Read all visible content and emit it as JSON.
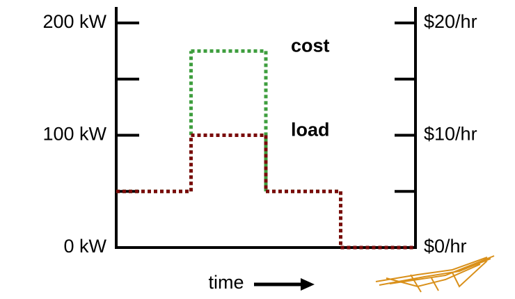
{
  "chart_data": {
    "type": "step",
    "xlabel": "time",
    "categories": [
      null,
      null,
      null,
      null
    ],
    "ylim": [
      0,
      200
    ],
    "yticks": [
      {
        "value": 0,
        "label": "0 kW"
      },
      {
        "value": 100,
        "label": "100 kW"
      },
      {
        "value": 200,
        "label": "200 kW"
      }
    ],
    "minor_yticks": [
      50,
      150
    ],
    "y2lim": [
      0,
      20
    ],
    "y2ticks": [
      {
        "value": 0,
        "label": "$0/hr"
      },
      {
        "value": 10,
        "label": "$10/hr"
      },
      {
        "value": 20,
        "label": "$20/hr"
      }
    ],
    "minor_y2ticks": [
      5,
      15
    ],
    "series": [
      {
        "name": "cost",
        "color": "#3e9e3e",
        "label_color": "#1e7a1e",
        "axis": "y2",
        "values": [
          5,
          17.5,
          5,
          0
        ]
      },
      {
        "name": "load",
        "color": "#7a0a0a",
        "label_color": "#c8461a",
        "values": [
          50,
          100,
          50,
          0
        ]
      }
    ]
  }
}
